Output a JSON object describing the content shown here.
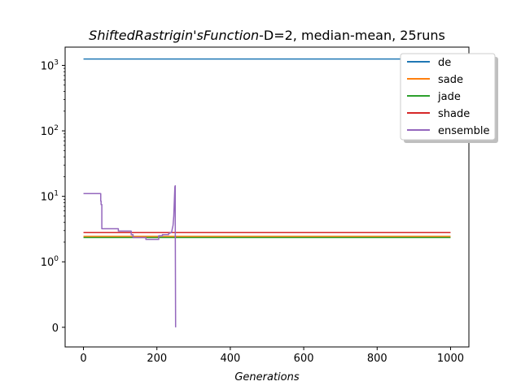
{
  "chart_data": {
    "type": "line",
    "title_italic": "ShiftedRastrigin'sFunction",
    "title_rest": "-D=2, median-mean, 25runs",
    "xlabel": "Generations",
    "ylabel": "",
    "yscale": "symlog",
    "xlim": [
      -50,
      1050
    ],
    "ylim": [
      -0.3,
      1900
    ],
    "xticks": [
      0,
      200,
      400,
      600,
      800,
      1000
    ],
    "xtick_labels": [
      "0",
      "200",
      "400",
      "600",
      "800",
      "1000"
    ],
    "yticks": [
      0,
      1,
      10,
      100,
      1000
    ],
    "ytick_labels": [
      "0",
      "10^0",
      "10^1",
      "10^2",
      "10^3"
    ],
    "legend_position": "upper-right (outside axes edge)",
    "grid": false,
    "series": [
      {
        "name": "de",
        "color": "#1f77b4",
        "x": [
          0,
          1000
        ],
        "y": [
          1250,
          1250
        ]
      },
      {
        "name": "sade",
        "color": "#ff7f0e",
        "x": [
          0,
          1000
        ],
        "y": [
          2.45,
          2.45
        ]
      },
      {
        "name": "jade",
        "color": "#2ca02c",
        "x": [
          0,
          1000
        ],
        "y": [
          2.35,
          2.35
        ]
      },
      {
        "name": "shade",
        "color": "#d62728",
        "x": [
          0,
          1000
        ],
        "y": [
          2.8,
          2.8
        ]
      },
      {
        "name": "ensemble",
        "color": "#9467bd",
        "x": [
          0,
          47,
          47,
          48,
          48,
          50,
          50,
          95,
          95,
          130,
          130,
          135,
          135,
          170,
          170,
          205,
          205,
          215,
          215,
          232,
          232,
          240,
          242,
          244,
          246,
          248,
          249,
          250,
          250,
          251
        ],
        "y": [
          11,
          11,
          8.5,
          8.5,
          7.5,
          7.5,
          3.2,
          3.2,
          2.95,
          2.95,
          2.6,
          2.6,
          2.35,
          2.35,
          2.2,
          2.2,
          2.5,
          2.5,
          2.6,
          2.6,
          2.7,
          2.8,
          3.2,
          3.6,
          5,
          10,
          14,
          14.5,
          5,
          0
        ]
      }
    ]
  }
}
